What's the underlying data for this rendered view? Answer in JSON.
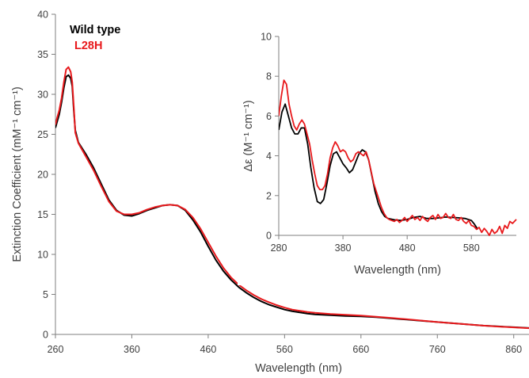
{
  "chart_data": [
    {
      "type": "line",
      "xlabel": "Wavelength (nm)",
      "ylabel": "Extinction Coefficient (mM⁻¹ cm⁻¹)",
      "xlim": [
        260,
        880
      ],
      "ylim": [
        0,
        40
      ],
      "xticks": [
        260,
        360,
        460,
        560,
        660,
        760,
        860
      ],
      "yticks": [
        0,
        5,
        10,
        15,
        20,
        25,
        30,
        35,
        40
      ],
      "grid": false,
      "legend_position": "top-left",
      "series": [
        {
          "name": "Wild type",
          "color": "#000000",
          "points": [
            [
              260,
              25.8
            ],
            [
              262,
              26.5
            ],
            [
              265,
              27.5
            ],
            [
              268,
              29.0
            ],
            [
              271,
              30.8
            ],
            [
              274,
              32.2
            ],
            [
              277,
              32.4
            ],
            [
              280,
              32.0
            ],
            [
              282,
              31.0
            ],
            [
              284,
              28.0
            ],
            [
              286,
              25.5
            ],
            [
              290,
              24.0
            ],
            [
              300,
              22.5
            ],
            [
              310,
              20.8
            ],
            [
              320,
              18.8
            ],
            [
              330,
              16.8
            ],
            [
              340,
              15.5
            ],
            [
              350,
              14.9
            ],
            [
              360,
              14.8
            ],
            [
              370,
              15.1
            ],
            [
              380,
              15.5
            ],
            [
              390,
              15.8
            ],
            [
              400,
              16.1
            ],
            [
              410,
              16.2
            ],
            [
              420,
              16.1
            ],
            [
              430,
              15.5
            ],
            [
              440,
              14.3
            ],
            [
              450,
              12.8
            ],
            [
              460,
              11.0
            ],
            [
              470,
              9.3
            ],
            [
              480,
              7.9
            ],
            [
              490,
              6.8
            ],
            [
              500,
              5.9
            ],
            [
              510,
              5.2
            ],
            [
              520,
              4.6
            ],
            [
              530,
              4.1
            ],
            [
              540,
              3.7
            ],
            [
              550,
              3.4
            ],
            [
              560,
              3.1
            ],
            [
              570,
              2.9
            ],
            [
              580,
              2.75
            ],
            [
              590,
              2.6
            ],
            [
              600,
              2.5
            ],
            [
              620,
              2.4
            ],
            [
              640,
              2.3
            ],
            [
              660,
              2.25
            ],
            [
              680,
              2.15
            ],
            [
              700,
              2.0
            ],
            [
              720,
              1.85
            ],
            [
              740,
              1.7
            ],
            [
              760,
              1.55
            ],
            [
              780,
              1.4
            ],
            [
              800,
              1.25
            ],
            [
              820,
              1.1
            ],
            [
              840,
              1.0
            ],
            [
              860,
              0.9
            ],
            [
              880,
              0.8
            ]
          ]
        },
        {
          "name": "L28H",
          "color": "#e8191c",
          "points": [
            [
              260,
              26.2
            ],
            [
              262,
              27.0
            ],
            [
              265,
              28.0
            ],
            [
              268,
              29.5
            ],
            [
              271,
              31.5
            ],
            [
              274,
              33.1
            ],
            [
              277,
              33.4
            ],
            [
              280,
              32.8
            ],
            [
              282,
              31.5
            ],
            [
              284,
              28.5
            ],
            [
              286,
              25.2
            ],
            [
              290,
              23.9
            ],
            [
              300,
              22.2
            ],
            [
              310,
              20.5
            ],
            [
              320,
              18.5
            ],
            [
              330,
              16.6
            ],
            [
              340,
              15.4
            ],
            [
              350,
              15.0
            ],
            [
              360,
              15.0
            ],
            [
              370,
              15.2
            ],
            [
              380,
              15.6
            ],
            [
              390,
              15.9
            ],
            [
              400,
              16.1
            ],
            [
              410,
              16.2
            ],
            [
              420,
              16.1
            ],
            [
              430,
              15.6
            ],
            [
              440,
              14.6
            ],
            [
              450,
              13.2
            ],
            [
              460,
              11.5
            ],
            [
              470,
              9.8
            ],
            [
              480,
              8.3
            ],
            [
              490,
              7.1
            ],
            [
              500,
              6.2
            ],
            [
              510,
              5.5
            ],
            [
              520,
              4.9
            ],
            [
              530,
              4.4
            ],
            [
              540,
              4.0
            ],
            [
              550,
              3.65
            ],
            [
              560,
              3.35
            ],
            [
              570,
              3.1
            ],
            [
              580,
              2.95
            ],
            [
              590,
              2.8
            ],
            [
              600,
              2.7
            ],
            [
              620,
              2.55
            ],
            [
              640,
              2.45
            ],
            [
              660,
              2.35
            ],
            [
              680,
              2.2
            ],
            [
              700,
              2.05
            ],
            [
              720,
              1.9
            ],
            [
              740,
              1.72
            ],
            [
              760,
              1.55
            ],
            [
              780,
              1.4
            ],
            [
              800,
              1.25
            ],
            [
              820,
              1.1
            ],
            [
              840,
              0.98
            ],
            [
              860,
              0.88
            ],
            [
              880,
              0.78
            ]
          ]
        }
      ],
      "legend": [
        {
          "label": "Wild type",
          "color": "#000000"
        },
        {
          "label": "L28H",
          "color": "#e8191c"
        }
      ]
    },
    {
      "type": "line",
      "role": "inset",
      "xlabel": "Wavelength (nm)",
      "ylabel": "Δε (M⁻¹ cm⁻¹)",
      "xlim": [
        280,
        650
      ],
      "ylim": [
        0,
        10
      ],
      "xticks": [
        280,
        380,
        480,
        580
      ],
      "yticks": [
        0,
        2,
        4,
        6,
        8,
        10
      ],
      "grid": false,
      "series": [
        {
          "name": "Wild type",
          "color": "#000000",
          "points": [
            [
              280,
              5.3
            ],
            [
              285,
              6.2
            ],
            [
              290,
              6.6
            ],
            [
              295,
              6.0
            ],
            [
              300,
              5.4
            ],
            [
              305,
              5.1
            ],
            [
              310,
              5.1
            ],
            [
              315,
              5.4
            ],
            [
              320,
              5.4
            ],
            [
              325,
              4.6
            ],
            [
              330,
              3.4
            ],
            [
              335,
              2.4
            ],
            [
              340,
              1.7
            ],
            [
              345,
              1.6
            ],
            [
              350,
              1.8
            ],
            [
              355,
              2.6
            ],
            [
              360,
              3.5
            ],
            [
              365,
              4.1
            ],
            [
              370,
              4.2
            ],
            [
              375,
              3.9
            ],
            [
              380,
              3.6
            ],
            [
              385,
              3.4
            ],
            [
              390,
              3.15
            ],
            [
              395,
              3.3
            ],
            [
              400,
              3.7
            ],
            [
              405,
              4.1
            ],
            [
              410,
              4.3
            ],
            [
              415,
              4.2
            ],
            [
              420,
              3.8
            ],
            [
              425,
              3.0
            ],
            [
              430,
              2.2
            ],
            [
              435,
              1.6
            ],
            [
              440,
              1.2
            ],
            [
              445,
              0.95
            ],
            [
              450,
              0.85
            ],
            [
              460,
              0.78
            ],
            [
              470,
              0.75
            ],
            [
              480,
              0.8
            ],
            [
              490,
              0.9
            ],
            [
              500,
              0.95
            ],
            [
              510,
              0.85
            ],
            [
              520,
              0.85
            ],
            [
              530,
              0.88
            ],
            [
              540,
              0.92
            ],
            [
              550,
              0.9
            ],
            [
              560,
              0.88
            ],
            [
              570,
              0.85
            ],
            [
              580,
              0.75
            ],
            [
              585,
              0.55
            ],
            [
              590,
              0.3
            ]
          ]
        },
        {
          "name": "L28H",
          "color": "#e8191c",
          "points": [
            [
              280,
              6.0
            ],
            [
              284,
              7.0
            ],
            [
              288,
              7.8
            ],
            [
              292,
              7.6
            ],
            [
              296,
              6.6
            ],
            [
              300,
              6.0
            ],
            [
              304,
              5.5
            ],
            [
              308,
              5.3
            ],
            [
              312,
              5.6
            ],
            [
              316,
              5.8
            ],
            [
              320,
              5.6
            ],
            [
              324,
              5.1
            ],
            [
              328,
              4.6
            ],
            [
              332,
              3.8
            ],
            [
              336,
              3.1
            ],
            [
              340,
              2.5
            ],
            [
              344,
              2.3
            ],
            [
              348,
              2.3
            ],
            [
              352,
              2.5
            ],
            [
              356,
              3.1
            ],
            [
              360,
              3.9
            ],
            [
              364,
              4.4
            ],
            [
              368,
              4.7
            ],
            [
              372,
              4.5
            ],
            [
              376,
              4.2
            ],
            [
              380,
              4.3
            ],
            [
              384,
              4.2
            ],
            [
              388,
              3.9
            ],
            [
              392,
              3.7
            ],
            [
              396,
              3.8
            ],
            [
              400,
              4.1
            ],
            [
              404,
              4.2
            ],
            [
              408,
              4.1
            ],
            [
              412,
              4.0
            ],
            [
              416,
              4.2
            ],
            [
              420,
              3.8
            ],
            [
              424,
              3.2
            ],
            [
              428,
              2.6
            ],
            [
              432,
              2.2
            ],
            [
              436,
              1.8
            ],
            [
              440,
              1.4
            ],
            [
              444,
              1.1
            ],
            [
              448,
              0.9
            ],
            [
              452,
              0.8
            ],
            [
              456,
              0.75
            ],
            [
              460,
              0.7
            ],
            [
              464,
              0.8
            ],
            [
              468,
              0.65
            ],
            [
              472,
              0.75
            ],
            [
              476,
              0.9
            ],
            [
              480,
              0.7
            ],
            [
              484,
              0.85
            ],
            [
              488,
              1.0
            ],
            [
              492,
              0.8
            ],
            [
              496,
              0.9
            ],
            [
              500,
              0.75
            ],
            [
              504,
              0.95
            ],
            [
              508,
              0.8
            ],
            [
              512,
              0.7
            ],
            [
              516,
              0.9
            ],
            [
              520,
              1.0
            ],
            [
              524,
              0.8
            ],
            [
              528,
              1.05
            ],
            [
              532,
              0.85
            ],
            [
              536,
              0.9
            ],
            [
              540,
              1.1
            ],
            [
              544,
              0.9
            ],
            [
              548,
              0.85
            ],
            [
              552,
              1.05
            ],
            [
              556,
              0.8
            ],
            [
              560,
              0.75
            ],
            [
              564,
              0.9
            ],
            [
              568,
              0.7
            ],
            [
              572,
              0.6
            ],
            [
              576,
              0.75
            ],
            [
              580,
              0.5
            ],
            [
              584,
              0.45
            ],
            [
              588,
              0.3
            ],
            [
              592,
              0.4
            ],
            [
              596,
              0.15
            ],
            [
              600,
              0.35
            ],
            [
              604,
              0.2
            ],
            [
              608,
              0.0
            ],
            [
              612,
              0.3
            ],
            [
              616,
              0.1
            ],
            [
              620,
              0.2
            ],
            [
              624,
              0.45
            ],
            [
              628,
              0.1
            ],
            [
              632,
              0.5
            ],
            [
              636,
              0.35
            ],
            [
              640,
              0.7
            ],
            [
              644,
              0.6
            ],
            [
              650,
              0.8
            ]
          ]
        }
      ]
    }
  ]
}
